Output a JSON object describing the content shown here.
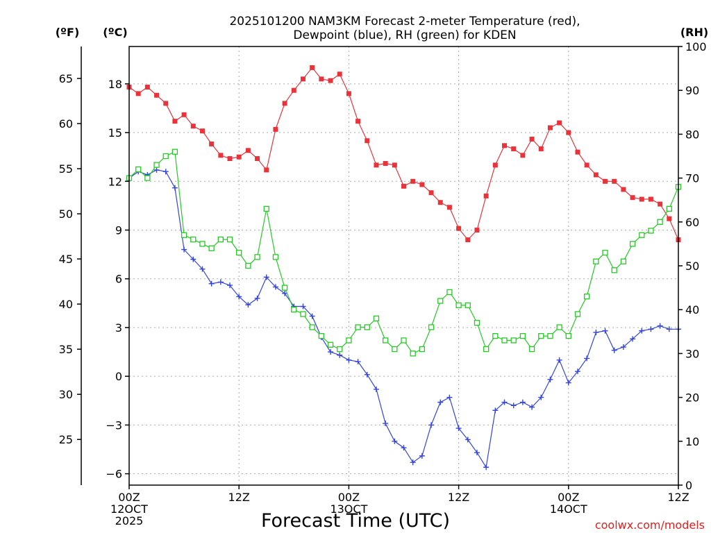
{
  "chart_data": {
    "type": "line",
    "title_line1": "2025101200 NAM3KM Forecast 2-meter Temperature (red),",
    "title_line2": "Dewpoint (blue), RH (green) for KDEN",
    "unit_f": "(ºF)",
    "unit_c": "(ºC)",
    "unit_rh": "(RH)",
    "xlabel": "Forecast Time (UTC)",
    "watermark": "coolwx.com/models",
    "xlim": [
      0,
      60
    ],
    "c_lim": [
      -6.7,
      20.3
    ],
    "rh_lim": [
      0,
      100
    ],
    "f_lim": [
      19.94,
      68.54
    ],
    "c_ticks": [
      "-6",
      "-3",
      "0",
      "3",
      "6",
      "9",
      "12",
      "15",
      "18"
    ],
    "f_ticks": [
      "25",
      "30",
      "35",
      "40",
      "45",
      "50",
      "55",
      "60",
      "65"
    ],
    "rh_ticks": [
      "0",
      "10",
      "20",
      "30",
      "40",
      "50",
      "60",
      "70",
      "80",
      "90",
      "100"
    ],
    "x_ticks": [
      {
        "hour": 0,
        "lines": [
          "00Z",
          "12OCT",
          "2025"
        ]
      },
      {
        "hour": 12,
        "lines": [
          "12Z"
        ]
      },
      {
        "hour": 24,
        "lines": [
          "00Z",
          "13OCT"
        ]
      },
      {
        "hour": 36,
        "lines": [
          "12Z"
        ]
      },
      {
        "hour": 48,
        "lines": [
          "00Z",
          "14OCT"
        ]
      },
      {
        "hour": 60,
        "lines": [
          "12Z"
        ]
      }
    ],
    "series": [
      {
        "name": "Temperature (°C)",
        "axis": "c",
        "color": "#e8333a",
        "marker": "filled-square",
        "values": [
          17.8,
          17.4,
          17.8,
          17.3,
          16.8,
          15.7,
          16.1,
          15.4,
          15.1,
          14.3,
          13.6,
          13.4,
          13.5,
          13.9,
          13.4,
          12.7,
          15.2,
          16.8,
          17.6,
          18.3,
          19.0,
          18.3,
          18.2,
          18.6,
          17.4,
          15.7,
          14.5,
          13.0,
          13.1,
          13.0,
          11.7,
          12.0,
          11.8,
          11.3,
          10.7,
          10.4,
          9.1,
          8.4,
          9.0,
          11.1,
          13.0,
          14.2,
          14.0,
          13.6,
          14.6,
          14.0,
          15.3,
          15.6,
          15.0,
          13.8,
          13.0,
          12.4,
          12.0,
          12.0,
          11.5,
          11.0,
          10.9,
          10.9,
          10.6,
          9.7,
          8.4
        ]
      },
      {
        "name": "Dewpoint (°C)",
        "axis": "c",
        "color": "#3344dd",
        "marker": "plus",
        "values": [
          12.2,
          12.6,
          12.4,
          12.7,
          12.6,
          11.6,
          7.8,
          7.2,
          6.6,
          5.7,
          5.8,
          5.6,
          4.9,
          4.4,
          4.8,
          6.1,
          5.5,
          5.1,
          4.3,
          4.3,
          3.7,
          2.4,
          1.5,
          1.3,
          1.0,
          0.9,
          0.1,
          -0.8,
          -2.9,
          -4.0,
          -4.4,
          -5.3,
          -4.9,
          -3.0,
          -1.6,
          -1.3,
          -3.2,
          -3.9,
          -4.7,
          -5.6,
          -2.1,
          -1.6,
          -1.8,
          -1.6,
          -1.9,
          -1.3,
          -0.2,
          1.0,
          -0.4,
          0.3,
          1.1,
          2.7,
          2.8,
          1.6,
          1.8,
          2.3,
          2.8,
          2.9,
          3.1,
          2.9,
          2.9
        ]
      },
      {
        "name": "RH (%)",
        "axis": "rh",
        "color": "#22cc22",
        "marker": "open-square",
        "values": [
          70,
          72,
          70,
          73,
          75,
          76,
          57,
          56,
          55,
          54,
          56,
          56,
          53,
          50,
          52,
          63,
          52,
          45,
          40,
          39,
          36,
          34,
          32,
          31,
          33,
          36,
          36,
          38,
          33,
          31,
          33,
          30,
          31,
          36,
          42,
          44,
          41,
          41,
          37,
          31,
          34,
          33,
          33,
          34,
          31,
          34,
          34,
          36,
          34,
          39,
          43,
          51,
          53,
          49,
          51,
          55,
          57,
          58,
          60,
          63,
          68
        ]
      }
    ]
  }
}
